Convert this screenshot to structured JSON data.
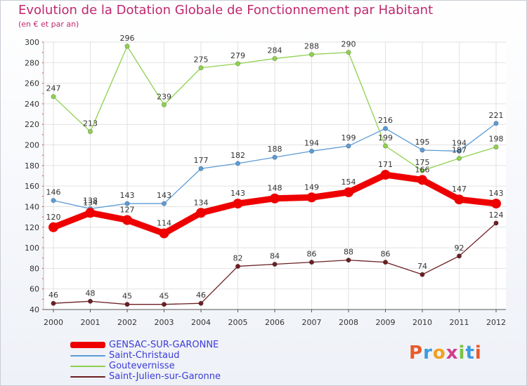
{
  "header": {
    "title": "Evolution de la Dotation Globale de Fonctionnement par Habitant",
    "subtitle": "(en € et par an)"
  },
  "logo": {
    "text": "Proxiti",
    "colors": [
      "#e85a2a",
      "#3c9be0",
      "#f2a01c",
      "#d23c8c",
      "#7cc242",
      "#3c9be0",
      "#e85a2a"
    ]
  },
  "chart_data": {
    "type": "line",
    "title": "Evolution de la Dotation Globale de Fonctionnement par Habitant",
    "subtitle": "(en € et par an)",
    "xlabel": "",
    "ylabel": "",
    "x": [
      "2000",
      "2001",
      "2002",
      "2003",
      "2004",
      "2005",
      "2006",
      "2007",
      "2008",
      "2009",
      "2010",
      "2011",
      "2012"
    ],
    "ylim": [
      40,
      300
    ],
    "yticks": [
      40,
      60,
      80,
      100,
      120,
      140,
      160,
      180,
      200,
      220,
      240,
      260,
      280,
      300
    ],
    "grid": true,
    "legend_position": "bottom-left",
    "series": [
      {
        "name": "GENSAC-SUR-GARONNE",
        "color": "#ee0000",
        "emphasis": "thick",
        "values": [
          120,
          134,
          127,
          114,
          134,
          143,
          148,
          149,
          154,
          171,
          166,
          147,
          143
        ]
      },
      {
        "name": "Saint-Christaud",
        "color": "#5b9bd5",
        "emphasis": "thin",
        "values": [
          146,
          138,
          143,
          143,
          177,
          182,
          188,
          194,
          199,
          216,
          195,
          194,
          221
        ]
      },
      {
        "name": "Goutevernisse",
        "color": "#8fd14f",
        "emphasis": "thin",
        "values": [
          247,
          213,
          296,
          239,
          275,
          279,
          284,
          288,
          290,
          199,
          175,
          187,
          198
        ]
      },
      {
        "name": "Saint-Julien-sur-Garonne",
        "color": "#6b1f24",
        "emphasis": "thin",
        "values": [
          46,
          48,
          45,
          45,
          46,
          82,
          84,
          86,
          88,
          86,
          74,
          92,
          124
        ]
      }
    ]
  }
}
